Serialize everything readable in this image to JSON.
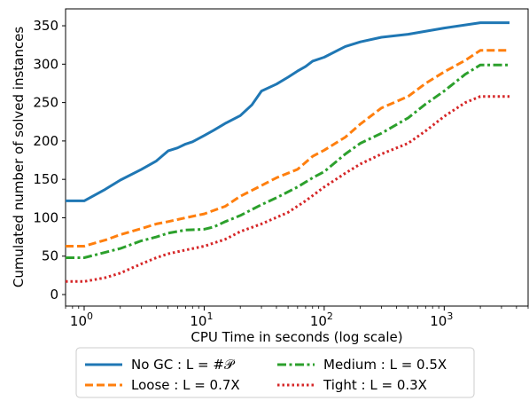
{
  "chart_data": {
    "type": "line",
    "title": "",
    "xlabel": "CPU Time in seconds (log scale)",
    "ylabel": "Cumulated number of solved instances",
    "x_scale": "log",
    "xlim": [
      0.7,
      5000
    ],
    "ylim": [
      -15,
      372
    ],
    "grid": false,
    "legend_position": "below",
    "x_ticks": [
      {
        "value": 1,
        "base": "10",
        "exp": "0"
      },
      {
        "value": 10,
        "base": "10",
        "exp": "1"
      },
      {
        "value": 100,
        "base": "10",
        "exp": "2"
      },
      {
        "value": 1000,
        "base": "10",
        "exp": "3"
      }
    ],
    "y_ticks": [
      0,
      50,
      100,
      150,
      200,
      250,
      300,
      350
    ],
    "series": [
      {
        "name": "No GC : L = #𝒫",
        "color": "#1f77b4",
        "dash": "solid",
        "points": [
          [
            0.7,
            122
          ],
          [
            1,
            122
          ],
          [
            1.5,
            137
          ],
          [
            2,
            149
          ],
          [
            3,
            163
          ],
          [
            4,
            174
          ],
          [
            5,
            187
          ],
          [
            6,
            191
          ],
          [
            7,
            196
          ],
          [
            8,
            199
          ],
          [
            10,
            207
          ],
          [
            12,
            214
          ],
          [
            15,
            223
          ],
          [
            20,
            233
          ],
          [
            25,
            247
          ],
          [
            30,
            265
          ],
          [
            40,
            274
          ],
          [
            50,
            283
          ],
          [
            60,
            291
          ],
          [
            70,
            297
          ],
          [
            80,
            304
          ],
          [
            100,
            309
          ],
          [
            150,
            323
          ],
          [
            200,
            329
          ],
          [
            300,
            335
          ],
          [
            500,
            339
          ],
          [
            1000,
            347
          ],
          [
            2000,
            354
          ],
          [
            3500,
            354
          ]
        ]
      },
      {
        "name": "Loose : L = 0.7X",
        "color": "#ff7f0e",
        "dash": "dashed",
        "points": [
          [
            0.7,
            63
          ],
          [
            1,
            63
          ],
          [
            1.5,
            71
          ],
          [
            2,
            78
          ],
          [
            3,
            86
          ],
          [
            4,
            92
          ],
          [
            5,
            95
          ],
          [
            7,
            100
          ],
          [
            10,
            105
          ],
          [
            15,
            115
          ],
          [
            20,
            128
          ],
          [
            30,
            142
          ],
          [
            40,
            152
          ],
          [
            60,
            163
          ],
          [
            80,
            180
          ],
          [
            100,
            188
          ],
          [
            150,
            205
          ],
          [
            200,
            222
          ],
          [
            300,
            243
          ],
          [
            500,
            258
          ],
          [
            700,
            275
          ],
          [
            1000,
            290
          ],
          [
            1500,
            305
          ],
          [
            2000,
            318
          ],
          [
            3500,
            318
          ]
        ]
      },
      {
        "name": "Medium : L = 0.5X",
        "color": "#2ca02c",
        "dash": "dashdot",
        "points": [
          [
            0.7,
            48
          ],
          [
            1,
            48
          ],
          [
            1.5,
            55
          ],
          [
            2,
            60
          ],
          [
            3,
            70
          ],
          [
            4,
            75
          ],
          [
            5,
            80
          ],
          [
            7,
            84
          ],
          [
            10,
            85
          ],
          [
            12,
            88
          ],
          [
            15,
            95
          ],
          [
            20,
            103
          ],
          [
            30,
            117
          ],
          [
            40,
            126
          ],
          [
            60,
            140
          ],
          [
            80,
            152
          ],
          [
            100,
            160
          ],
          [
            150,
            183
          ],
          [
            200,
            197
          ],
          [
            300,
            210
          ],
          [
            500,
            230
          ],
          [
            700,
            248
          ],
          [
            1000,
            265
          ],
          [
            1500,
            287
          ],
          [
            2000,
            299
          ],
          [
            3500,
            299
          ]
        ]
      },
      {
        "name": "Tight : L = 0.3X",
        "color": "#d62728",
        "dash": "dotted",
        "points": [
          [
            0.7,
            17
          ],
          [
            1,
            17
          ],
          [
            1.5,
            22
          ],
          [
            2,
            28
          ],
          [
            3,
            40
          ],
          [
            4,
            48
          ],
          [
            5,
            53
          ],
          [
            7,
            58
          ],
          [
            10,
            63
          ],
          [
            15,
            72
          ],
          [
            20,
            82
          ],
          [
            30,
            92
          ],
          [
            50,
            107
          ],
          [
            70,
            122
          ],
          [
            100,
            140
          ],
          [
            150,
            158
          ],
          [
            200,
            170
          ],
          [
            300,
            183
          ],
          [
            500,
            197
          ],
          [
            700,
            213
          ],
          [
            1000,
            232
          ],
          [
            1500,
            250
          ],
          [
            2000,
            258
          ],
          [
            3500,
            258
          ]
        ]
      }
    ]
  }
}
